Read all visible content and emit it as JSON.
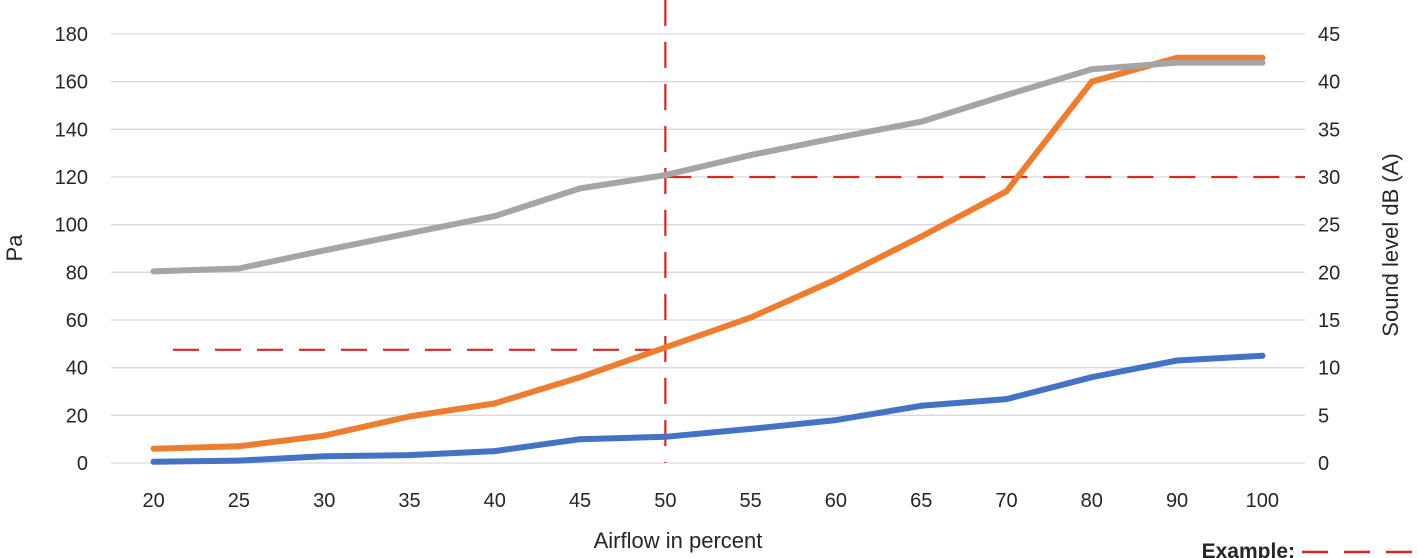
{
  "chart_data": {
    "type": "line",
    "xlabel": "Airflow in percent",
    "ylabel": "Pa",
    "y2label": "Sound level dB (A)",
    "categories": [
      "20",
      "25",
      "30",
      "35",
      "40",
      "45",
      "50",
      "55",
      "60",
      "65",
      "70",
      "80",
      "90",
      "100"
    ],
    "ylim": [
      0,
      180
    ],
    "y_ticks": [
      0,
      20,
      40,
      60,
      80,
      100,
      120,
      140,
      160,
      180
    ],
    "y2lim": [
      0,
      45
    ],
    "y2_ticks": [
      0,
      5,
      10,
      15,
      20,
      25,
      30,
      35,
      40,
      45
    ],
    "grid": true,
    "series": [
      {
        "axis": "left",
        "color": "#4472C4",
        "values": [
          0.5,
          1,
          2.8,
          3.3,
          5,
          10,
          11,
          14.3,
          18,
          24,
          26.8,
          36,
          43,
          45
        ]
      },
      {
        "axis": "left",
        "color": "#ED7D31",
        "values": [
          6,
          7,
          11.5,
          19.5,
          25,
          36,
          48.5,
          61,
          77,
          95,
          114,
          160,
          170,
          170
        ]
      },
      {
        "axis": "right",
        "color": "#A5A5A5",
        "values": [
          20.1,
          20.4,
          22.3,
          24.1,
          25.9,
          28.8,
          30.2,
          32.3,
          34.1,
          35.8,
          38.6,
          41.3,
          42,
          42
        ]
      }
    ],
    "example": {
      "label": "Example:",
      "color": "#D62728",
      "x_category": "50",
      "left_level": 47.5,
      "right_level": 30
    }
  }
}
